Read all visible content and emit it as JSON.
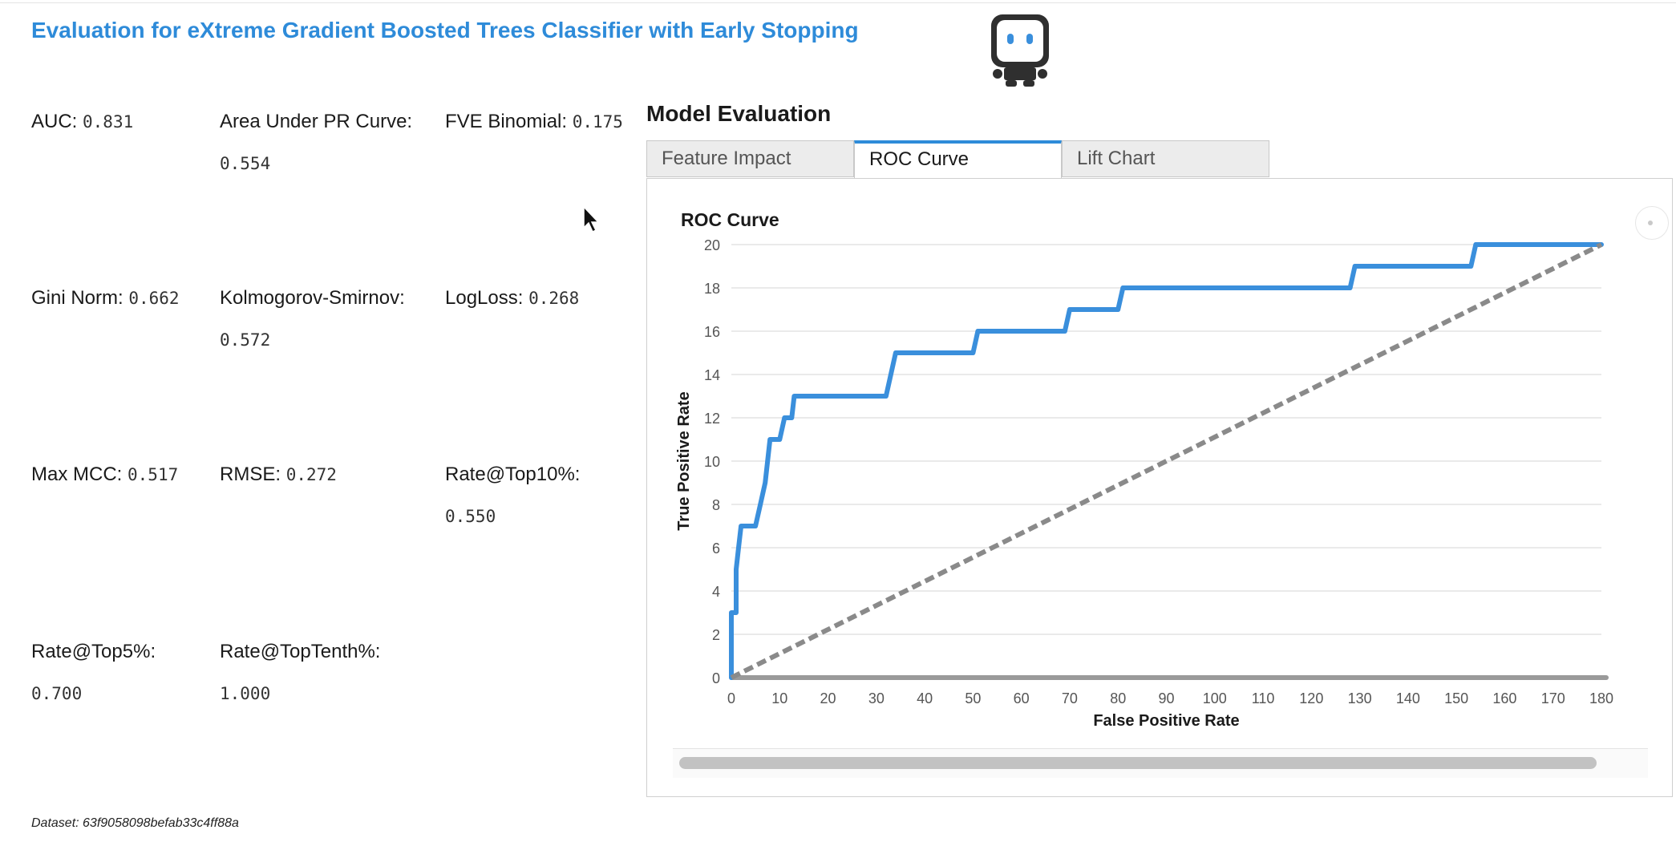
{
  "page": {
    "title": "Evaluation for eXtreme Gradient Boosted Trees Classifier with Early Stopping",
    "logo_icon": "robot-icon",
    "dataset_text": "Dataset: 63f9058098befab33c4ff88a"
  },
  "metrics": [
    {
      "label": "AUC:",
      "value": "0.831"
    },
    {
      "label": "Area Under PR Curve:",
      "value": "0.554"
    },
    {
      "label": "FVE Binomial:",
      "value": "0.175"
    },
    {
      "label": "Gini Norm:",
      "value": "0.662"
    },
    {
      "label": "Kolmogorov-Smirnov:",
      "value": "0.572"
    },
    {
      "label": "LogLoss:",
      "value": "0.268"
    },
    {
      "label": "Max MCC:",
      "value": "0.517"
    },
    {
      "label": "RMSE:",
      "value": "0.272"
    },
    {
      "label": "Rate@Top10%:",
      "value": "0.550"
    },
    {
      "label": "Rate@Top5%:",
      "value": "0.700"
    },
    {
      "label": "Rate@TopTenth%:",
      "value": "1.000"
    }
  ],
  "evaluation": {
    "heading": "Model Evaluation",
    "tabs": [
      {
        "label": "Feature Impact",
        "active": false
      },
      {
        "label": "ROC Curve",
        "active": true
      },
      {
        "label": "Lift Chart",
        "active": false
      }
    ]
  },
  "chart_data": {
    "type": "line",
    "title": "ROC Curve",
    "xlabel": "False Positive Rate",
    "ylabel": "True Positive Rate",
    "xlim": [
      0,
      180
    ],
    "ylim": [
      0,
      20
    ],
    "x_ticks": [
      0,
      10,
      20,
      30,
      40,
      50,
      60,
      70,
      80,
      90,
      100,
      110,
      120,
      130,
      140,
      150,
      160,
      170,
      180
    ],
    "y_ticks": [
      0,
      2,
      4,
      6,
      8,
      10,
      12,
      14,
      16,
      18,
      20
    ],
    "grid": true,
    "colors": {
      "roc": "#3a8fdc",
      "diagonal": "#8a8a8a",
      "grid": "#e3e3e3"
    },
    "series": [
      {
        "role": "roc",
        "x": [
          0,
          0,
          0,
          0,
          0.5,
          1,
          1,
          1.5,
          2,
          3,
          4,
          5,
          6,
          7,
          7.5,
          8,
          9,
          10,
          11,
          12,
          12.5,
          13,
          14,
          15,
          16,
          18,
          20,
          25,
          30,
          32,
          33,
          34,
          36,
          38,
          40,
          45,
          49,
          50,
          51,
          52,
          54,
          56,
          60,
          65,
          68,
          69,
          70,
          72,
          75,
          78,
          80,
          81,
          83,
          86,
          90,
          100,
          110,
          120,
          125,
          127,
          128,
          129,
          131,
          135,
          140,
          145,
          150,
          152,
          153,
          154,
          156,
          160,
          165,
          170,
          175,
          180
        ],
        "y": [
          0,
          1.5,
          3,
          3,
          3,
          3,
          5,
          6,
          7,
          7,
          7,
          7,
          8,
          9,
          10,
          11,
          11,
          11,
          12,
          12,
          12,
          13,
          13,
          13,
          13,
          13,
          13,
          13,
          13,
          13,
          14,
          15,
          15,
          15,
          15,
          15,
          15,
          15,
          16,
          16,
          16,
          16,
          16,
          16,
          16,
          16,
          17,
          17,
          17,
          17,
          17,
          18,
          18,
          18,
          18,
          18,
          18,
          18,
          18,
          18,
          18,
          19,
          19,
          19,
          19,
          19,
          19,
          19,
          19,
          20,
          20,
          20,
          20,
          20,
          20,
          20
        ]
      },
      {
        "role": "diagonal",
        "x": [
          0,
          180
        ],
        "y": [
          0,
          20
        ]
      }
    ]
  }
}
